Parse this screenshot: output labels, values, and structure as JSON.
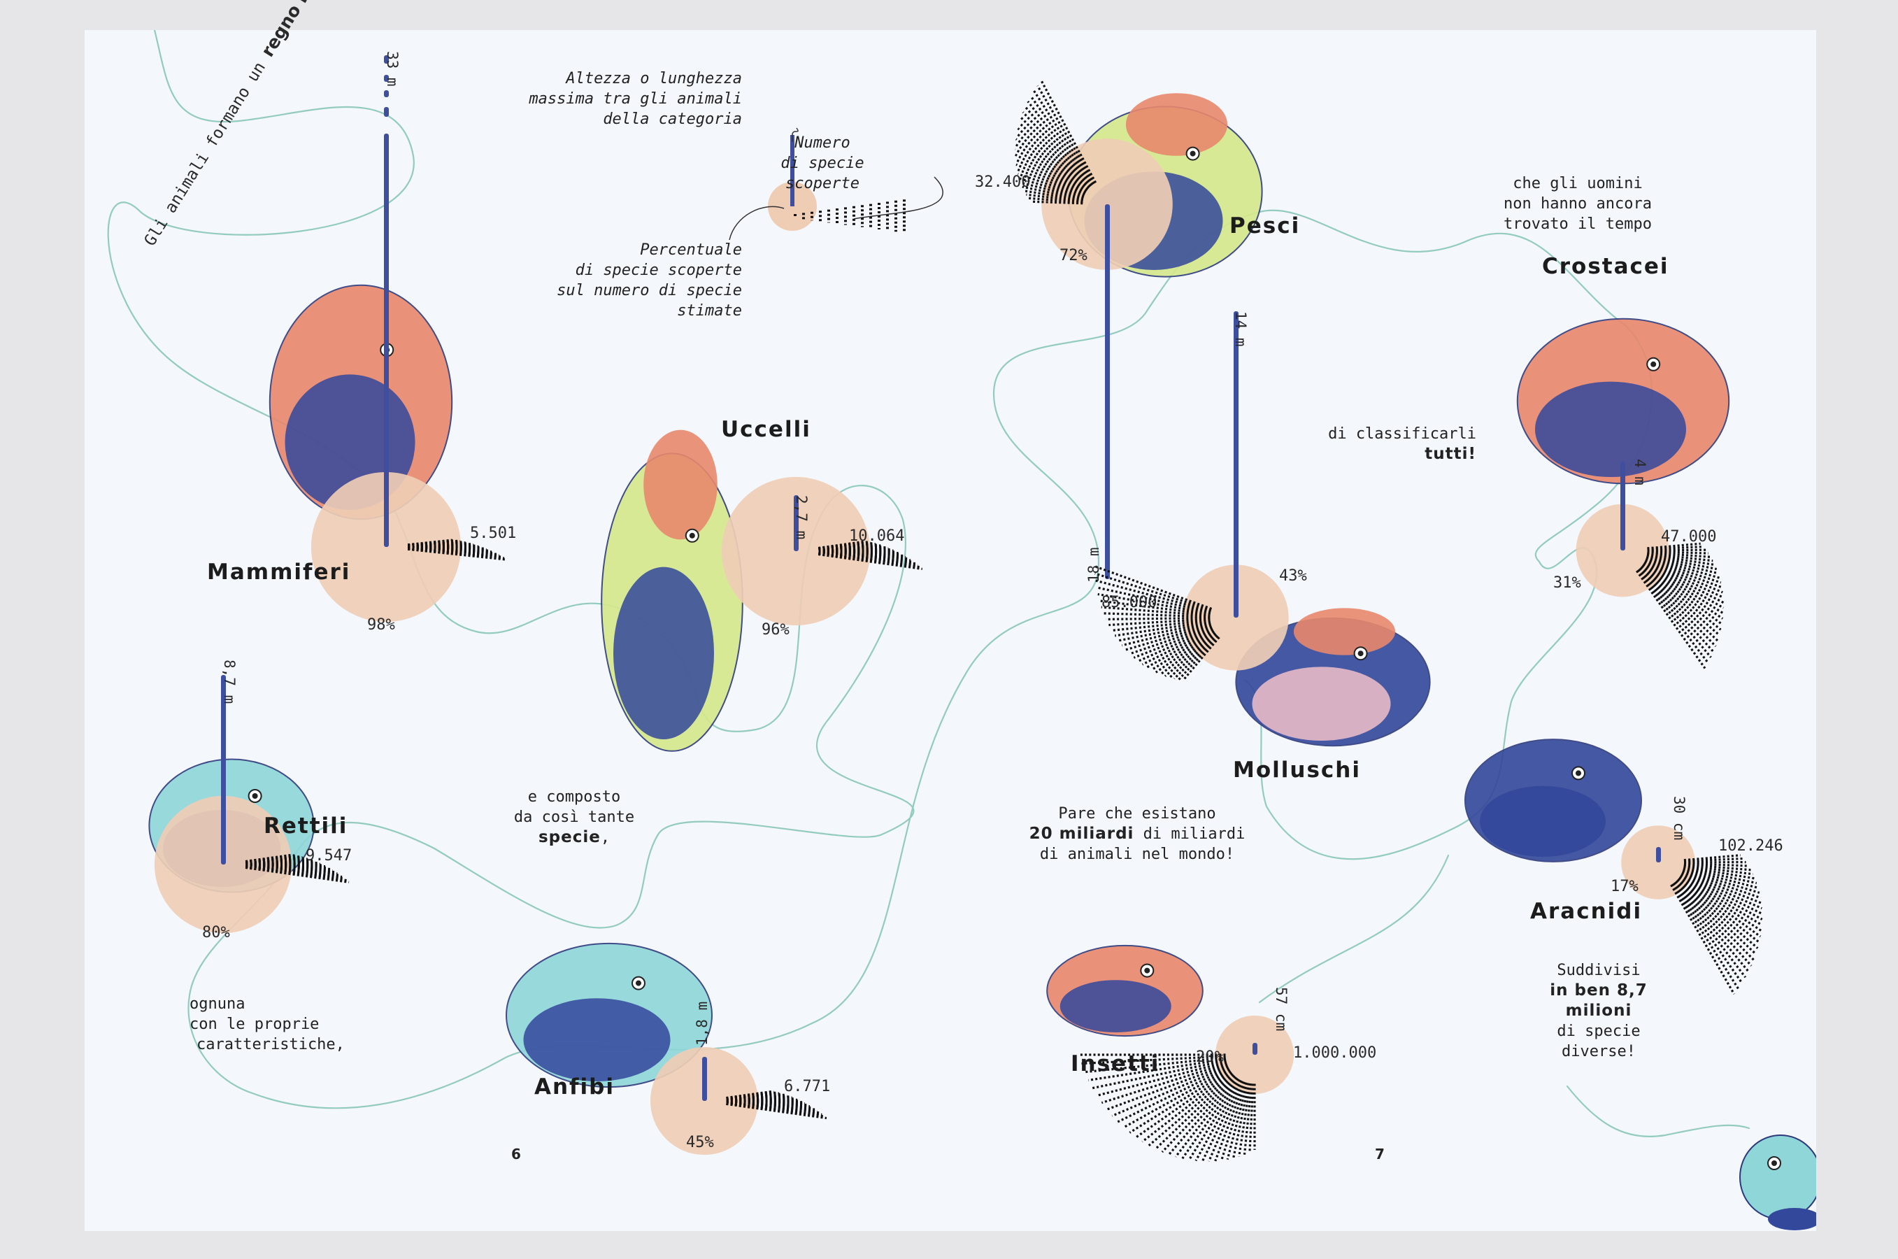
{
  "intro": {
    "line1": "Gli animali formano un ",
    "line1_bold": "regno immenso"
  },
  "story": {
    "composed_1": "e composto",
    "composed_2": "da così tante",
    "composed_bold": "specie",
    "composed_end": ",",
    "each_1": "ognuna",
    "each_2": "con le proprie",
    "each_3": "caratteristiche,",
    "men_1": "che gli uomini",
    "men_2": "non hanno ancora",
    "men_3": "trovato il tempo",
    "classify_1": "di classificarli",
    "classify_bold": "tutti!",
    "exist_1": "Pare che esistano",
    "exist_bold": "20 miliardi",
    "exist_2": " di miliardi",
    "exist_3": "di animali nel mondo!",
    "divided_1": "Suddivisi",
    "divided_bold_1": "in ben 8,7",
    "divided_bold_2": "milioni",
    "divided_2": "di specie",
    "divided_3": "diverse!"
  },
  "legend": {
    "height_1": "Altezza o lunghezza",
    "height_2": "massima tra gli animali",
    "height_3": "della categoria",
    "species_1": "Numero",
    "species_2": "di specie",
    "species_3": "scoperte",
    "percent_1": "Percentuale",
    "percent_2": "di specie scoperte",
    "percent_3": "sul numero di specie",
    "percent_4": "stimate"
  },
  "page_numbers": {
    "left": "6",
    "right": "7"
  },
  "categories": [
    {
      "id": "mammiferi",
      "name": "Mammiferi",
      "max_size_label": "33 m",
      "species_count": "5.501",
      "species_value": 5501,
      "discovered_percent_label": "98%",
      "discovered_percent": 98,
      "animal": "cat-illustration"
    },
    {
      "id": "uccelli",
      "name": "Uccelli",
      "max_size_label": "2,7 m",
      "species_count": "10.064",
      "species_value": 10064,
      "discovered_percent_label": "96%",
      "discovered_percent": 96,
      "animal": "parrot-illustration"
    },
    {
      "id": "rettili",
      "name": "Rettili",
      "max_size_label": "8,7 m",
      "species_count": "9.547",
      "species_value": 9547,
      "discovered_percent_label": "80%",
      "discovered_percent": 80,
      "animal": "chameleon-illustration"
    },
    {
      "id": "anfibi",
      "name": "Anfibi",
      "max_size_label": "1,8 m",
      "species_count": "6.771",
      "species_value": 6771,
      "discovered_percent_label": "45%",
      "discovered_percent": 45,
      "animal": "frog-illustration"
    },
    {
      "id": "pesci",
      "name": "Pesci",
      "max_size_label": "18 m",
      "species_count": "32.400",
      "species_value": 32400,
      "discovered_percent_label": "72%",
      "discovered_percent": 72,
      "animal": "fish-illustration"
    },
    {
      "id": "molluschi",
      "name": "Molluschi",
      "max_size_label": "14 m",
      "species_count": "85.000",
      "species_value": 85000,
      "discovered_percent_label": "43%",
      "discovered_percent": 43,
      "animal": "nautilus-illustration"
    },
    {
      "id": "crostacei",
      "name": "Crostacei",
      "max_size_label": "4 m",
      "species_count": "47.000",
      "species_value": 47000,
      "discovered_percent_label": "31%",
      "discovered_percent": 31,
      "animal": "crab-illustration"
    },
    {
      "id": "aracnidi",
      "name": "Aracnidi",
      "max_size_label": "30 cm",
      "species_count": "102.246",
      "species_value": 102246,
      "discovered_percent_label": "17%",
      "discovered_percent": 17,
      "animal": "spider-illustration"
    },
    {
      "id": "insetti",
      "name": "Insetti",
      "max_size_label": "57 cm",
      "species_count": "1.000.000",
      "species_value": 1000000,
      "discovered_percent_label": "20%",
      "discovered_percent": 20,
      "animal": "ladybug-illustration"
    }
  ],
  "colors": {
    "background": "#f4f7fb",
    "outer": "#e6e6e8",
    "bar": "#3f4f9f",
    "circle": "#efcdb5",
    "path": "#93cbc1",
    "dots": "#111111",
    "coral": "#e8886c",
    "navy": "#33479b",
    "lime": "#d6e88b",
    "aqua": "#8fd6d9",
    "pink": "#f2bfc9"
  }
}
